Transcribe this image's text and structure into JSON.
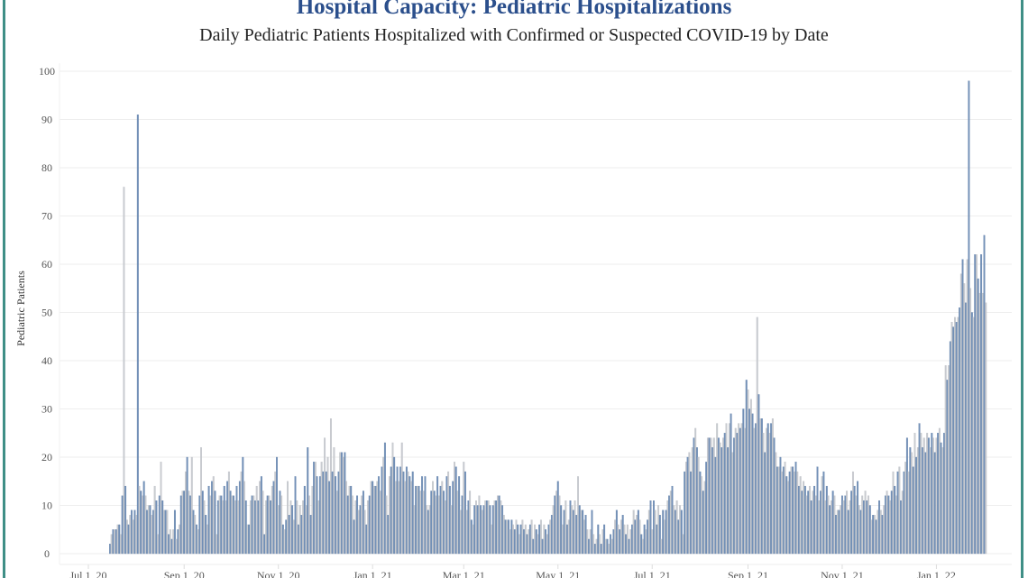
{
  "chart_data": {
    "type": "bar",
    "title": "Hospital Capacity: Pediatric Hospitalizations",
    "subtitle": "Daily Pediatric Patients Hospitalized with Confirmed or Suspected COVID-19 by Date",
    "xlabel": "",
    "ylabel": "Pediatric Patients",
    "ylim": [
      0,
      100
    ],
    "yticks": [
      0,
      10,
      20,
      30,
      40,
      50,
      60,
      70,
      80,
      90,
      100
    ],
    "xticks": [
      "Jul 1, 20",
      "Sep 1, 20",
      "Nov 1, 20",
      "Jan 1, 21",
      "Mar 1, 21",
      "May 1, 21",
      "Jul 1, 21",
      "Sep 1, 21",
      "Nov 1, 21",
      "Jan 1, 22"
    ],
    "xtick_dates": [
      "2020-07-01",
      "2020-09-01",
      "2020-11-01",
      "2021-01-01",
      "2021-03-01",
      "2021-05-01",
      "2021-07-01",
      "2021-09-01",
      "2021-11-01",
      "2022-01-01"
    ],
    "grid": true,
    "colors": {
      "bar_a": "#7391b8",
      "bar_b": "#c9ccd1",
      "title": "#2b4f8c",
      "frame": "#3f8f86"
    },
    "daily_values_by_month": [
      {
        "month": "2020-07",
        "first_day": 15,
        "values": [
          2,
          4,
          5,
          5,
          5,
          6,
          6,
          4,
          12,
          76,
          14,
          7,
          6,
          8,
          9,
          7,
          9
        ]
      },
      {
        "month": "2020-08",
        "first_day": 1,
        "values": [
          8,
          91,
          14,
          13,
          12,
          15,
          12,
          9,
          10,
          10,
          8,
          9,
          14,
          11,
          4,
          12,
          19,
          11,
          9,
          9,
          9,
          4,
          5,
          3,
          5,
          9,
          3,
          5,
          6,
          12,
          13
        ]
      },
      {
        "month": "2020-09",
        "first_day": 1,
        "values": [
          13,
          17,
          20,
          13,
          12,
          20,
          9,
          8,
          6,
          5,
          12,
          22,
          13,
          11,
          8,
          6,
          14,
          12,
          15,
          16,
          13,
          4,
          11,
          12,
          12,
          11,
          14,
          11,
          15,
          17
        ]
      },
      {
        "month": "2020-10",
        "first_day": 1,
        "values": [
          13,
          12,
          12,
          11,
          14,
          11,
          15,
          17,
          20,
          15,
          11,
          6,
          6,
          11,
          12,
          12,
          11,
          14,
          11,
          15,
          16,
          13,
          4,
          11,
          12,
          12,
          11,
          14,
          15,
          17,
          20
        ]
      },
      {
        "month": "2020-11",
        "first_day": 1,
        "values": [
          10,
          13,
          12,
          6,
          5,
          7,
          15,
          8,
          11,
          10,
          7,
          16,
          11,
          6,
          10,
          8,
          11,
          14,
          10,
          22,
          12,
          8,
          14,
          19,
          19,
          16,
          11,
          16,
          19,
          17
        ]
      },
      {
        "month": "2020-12",
        "first_day": 1,
        "values": [
          24,
          17,
          20,
          15,
          28,
          17,
          22,
          16,
          13,
          17,
          21,
          21,
          20,
          21,
          15,
          12,
          14,
          14,
          12,
          7,
          11,
          12,
          9,
          10,
          12,
          13,
          9,
          6,
          11,
          12,
          15
        ]
      },
      {
        "month": "2021-01",
        "first_day": 1,
        "values": [
          15,
          14,
          14,
          15,
          16,
          13,
          18,
          20,
          23,
          12,
          8,
          16,
          18,
          23,
          20,
          15,
          18,
          15,
          18,
          23,
          17,
          15,
          18,
          17,
          16,
          15,
          17,
          10,
          14,
          14,
          14
        ]
      },
      {
        "month": "2021-02",
        "first_day": 1,
        "values": [
          13,
          16,
          13,
          16,
          10,
          9,
          10,
          13,
          15,
          13,
          12,
          16,
          12,
          14,
          15,
          13,
          11,
          16,
          17,
          14,
          10,
          15,
          19,
          18,
          13,
          16,
          9,
          12
        ]
      },
      {
        "month": "2021-03",
        "first_day": 1,
        "values": [
          19,
          17,
          9,
          11,
          13,
          7,
          6,
          10,
          11,
          10,
          12,
          10,
          9,
          10,
          11,
          11,
          11,
          10,
          6,
          10,
          11,
          11,
          12,
          12,
          11,
          10,
          8,
          7,
          7,
          7,
          5
        ]
      },
      {
        "month": "2021-04",
        "first_day": 1,
        "values": [
          7,
          6,
          5,
          7,
          6,
          4,
          6,
          7,
          5,
          6,
          4,
          5,
          6,
          7,
          3,
          6,
          5,
          4,
          6,
          7,
          3,
          6,
          5,
          4,
          6,
          7,
          8,
          10,
          12,
          13
        ]
      },
      {
        "month": "2021-05",
        "first_day": 1,
        "values": [
          15,
          12,
          10,
          6,
          9,
          11,
          6,
          7,
          11,
          10,
          9,
          11,
          8,
          16,
          10,
          9,
          9,
          7,
          8,
          5,
          3,
          5,
          9,
          4,
          2,
          3,
          6,
          4,
          2,
          5,
          6
        ]
      },
      {
        "month": "2021-06",
        "first_day": 1,
        "values": [
          3,
          3,
          2,
          4,
          3,
          5,
          7,
          9,
          6,
          5,
          7,
          8,
          6,
          4,
          6,
          3,
          5,
          6,
          9,
          7,
          8,
          9,
          7,
          4,
          3,
          6,
          5,
          7,
          9,
          11
        ]
      },
      {
        "month": "2021-07",
        "first_day": 1,
        "values": [
          5,
          11,
          9,
          6,
          10,
          8,
          3,
          9,
          7,
          9,
          11,
          12,
          13,
          14,
          10,
          9,
          11,
          7,
          10,
          9,
          4,
          17,
          19,
          20,
          21,
          17,
          22,
          24,
          26,
          22,
          20
        ]
      },
      {
        "month": "2021-08",
        "first_day": 1,
        "values": [
          17,
          16,
          13,
          15,
          19,
          24,
          24,
          24,
          22,
          24,
          20,
          27,
          24,
          23,
          22,
          24,
          25,
          27,
          22,
          27,
          29,
          21,
          24,
          26,
          25,
          27,
          26,
          27,
          30,
          26,
          36
        ]
      },
      {
        "month": "2021-09",
        "first_day": 1,
        "values": [
          34,
          30,
          32,
          29,
          26,
          27,
          49,
          33,
          28,
          28,
          25,
          21,
          26,
          27,
          25,
          27,
          28,
          24,
          21,
          18,
          18,
          20,
          17,
          18,
          19,
          16,
          15,
          17,
          18,
          18
        ]
      },
      {
        "month": "2021-10",
        "first_day": 1,
        "values": [
          17,
          19,
          17,
          14,
          16,
          13,
          15,
          14,
          12,
          13,
          14,
          11,
          13,
          14,
          12,
          18,
          11,
          13,
          16,
          17,
          11,
          14,
          12,
          10,
          11,
          13,
          12,
          8,
          9,
          9,
          10
        ]
      },
      {
        "month": "2021-11",
        "first_day": 1,
        "values": [
          12,
          11,
          12,
          13,
          9,
          11,
          13,
          17,
          14,
          12,
          15,
          10,
          9,
          12,
          11,
          13,
          11,
          12,
          10,
          7,
          8,
          8,
          7,
          9,
          11,
          9,
          8,
          10,
          12,
          13
        ]
      },
      {
        "month": "2021-12",
        "first_day": 1,
        "values": [
          12,
          11,
          13,
          17,
          14,
          12,
          17,
          18,
          11,
          13,
          17,
          19,
          24,
          17,
          22,
          21,
          18,
          25,
          20,
          22,
          27,
          25,
          22,
          24,
          21,
          25,
          24,
          22,
          25,
          24,
          21
        ]
      },
      {
        "month": "2022-01",
        "first_day": 1,
        "values": [
          24,
          25,
          26,
          23,
          22,
          25,
          39,
          36,
          39,
          44,
          48,
          47,
          49,
          48,
          49,
          51,
          58,
          61,
          56,
          52,
          61,
          98,
          55,
          50,
          49,
          62,
          62,
          57,
          54,
          62,
          54
        ]
      },
      {
        "month": "2022-02",
        "first_day": 1,
        "values": [
          66,
          52
        ]
      }
    ]
  }
}
